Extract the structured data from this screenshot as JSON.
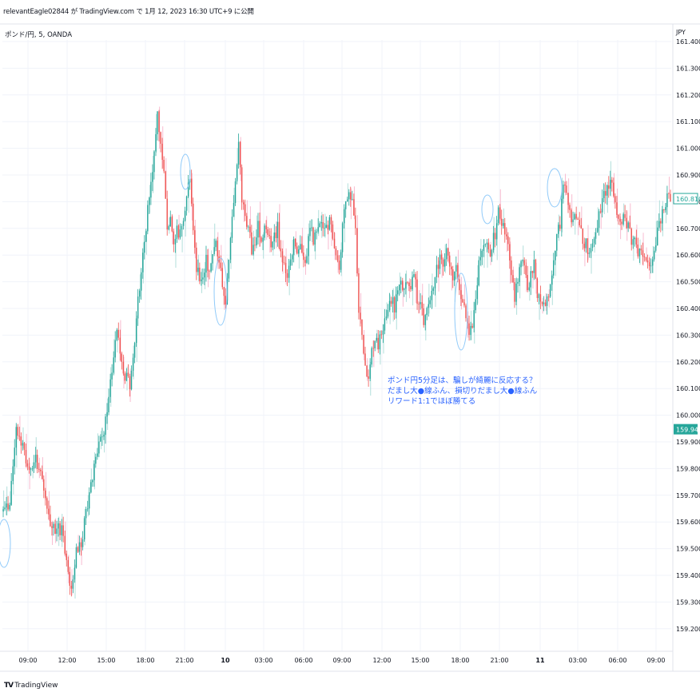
{
  "header": {
    "publisher": "relevantEagle02844 が TradingView.com で 1月 12, 2023 16:30 UTC+9 に公開"
  },
  "symbol_label": "ポンド/円, 5, OANDA",
  "brand": {
    "logo": "TV",
    "name": "TradingView"
  },
  "colors": {
    "up": "#26a69a",
    "down": "#ef5350",
    "ghost_up": "#b2dfdb",
    "ghost_down": "#f8bbd0",
    "annotation": "#2962ff",
    "ellipse": "#90caf9",
    "grid": "#f0f3fa"
  },
  "chart_data": {
    "type": "candlestick",
    "currency": "JPY",
    "ylim": [
      159.2,
      161.4
    ],
    "y_ticks": [
      "161.400",
      "161.300",
      "161.200",
      "161.100",
      "161.000",
      "160.900",
      "160.800",
      "160.700",
      "160.600",
      "160.500",
      "160.400",
      "160.300",
      "160.200",
      "160.100",
      "160.000",
      "159.900",
      "159.800",
      "159.700",
      "159.600",
      "159.500",
      "159.400",
      "159.300",
      "159.200"
    ],
    "x_ticks": [
      {
        "label": "09:00",
        "bold": false
      },
      {
        "label": "12:00",
        "bold": false
      },
      {
        "label": "15:00",
        "bold": false
      },
      {
        "label": "18:00",
        "bold": false
      },
      {
        "label": "21:00",
        "bold": false
      },
      {
        "label": "10",
        "bold": true
      },
      {
        "label": "03:00",
        "bold": false
      },
      {
        "label": "06:00",
        "bold": false
      },
      {
        "label": "09:00",
        "bold": false
      },
      {
        "label": "12:00",
        "bold": false
      },
      {
        "label": "15:00",
        "bold": false
      },
      {
        "label": "18:00",
        "bold": false
      },
      {
        "label": "21:00",
        "bold": false
      },
      {
        "label": "11",
        "bold": true
      },
      {
        "label": "03:00",
        "bold": false
      },
      {
        "label": "06:00",
        "bold": false
      },
      {
        "label": "09:00",
        "bold": false
      }
    ],
    "price_labels": [
      {
        "value": 160.81,
        "text": "160.810",
        "style": "outline"
      },
      {
        "value": 159.946,
        "text": "159.946",
        "style": "filled"
      }
    ],
    "anchors": [
      [
        0,
        159.64
      ],
      [
        4,
        159.66
      ],
      [
        8,
        159.96
      ],
      [
        12,
        159.88
      ],
      [
        16,
        159.8
      ],
      [
        20,
        159.85
      ],
      [
        24,
        159.74
      ],
      [
        28,
        159.62
      ],
      [
        32,
        159.56
      ],
      [
        36,
        159.58
      ],
      [
        40,
        159.42
      ],
      [
        42,
        159.34
      ],
      [
        45,
        159.5
      ],
      [
        48,
        159.52
      ],
      [
        52,
        159.66
      ],
      [
        56,
        159.82
      ],
      [
        60,
        159.9
      ],
      [
        64,
        160.0
      ],
      [
        68,
        160.24
      ],
      [
        70,
        160.3
      ],
      [
        72,
        160.24
      ],
      [
        74,
        160.14
      ],
      [
        76,
        160.16
      ],
      [
        78,
        160.12
      ],
      [
        80,
        160.2
      ],
      [
        82,
        160.36
      ],
      [
        84,
        160.48
      ],
      [
        86,
        160.6
      ],
      [
        88,
        160.7
      ],
      [
        90,
        160.84
      ],
      [
        92,
        160.9
      ],
      [
        95,
        161.14
      ],
      [
        97,
        161.02
      ],
      [
        99,
        160.9
      ],
      [
        101,
        160.7
      ],
      [
        103,
        160.74
      ],
      [
        105,
        160.66
      ],
      [
        107,
        160.7
      ],
      [
        109,
        160.68
      ],
      [
        111,
        160.74
      ],
      [
        113,
        160.8
      ],
      [
        115,
        160.9
      ],
      [
        117,
        160.7
      ],
      [
        119,
        160.56
      ],
      [
        121,
        160.52
      ],
      [
        123,
        160.5
      ],
      [
        125,
        160.58
      ],
      [
        127,
        160.54
      ],
      [
        129,
        160.62
      ],
      [
        131,
        160.66
      ],
      [
        133,
        160.56
      ],
      [
        135,
        160.5
      ],
      [
        137,
        160.4
      ],
      [
        139,
        160.6
      ],
      [
        141,
        160.74
      ],
      [
        143,
        160.9
      ],
      [
        145,
        161.02
      ],
      [
        147,
        160.8
      ],
      [
        149,
        160.74
      ],
      [
        151,
        160.72
      ],
      [
        153,
        160.62
      ],
      [
        155,
        160.64
      ],
      [
        157,
        160.72
      ],
      [
        159,
        160.66
      ],
      [
        161,
        160.7
      ],
      [
        163,
        160.68
      ],
      [
        165,
        160.62
      ],
      [
        167,
        160.66
      ],
      [
        169,
        160.7
      ],
      [
        171,
        160.6
      ],
      [
        173,
        160.56
      ],
      [
        175,
        160.52
      ],
      [
        177,
        160.56
      ],
      [
        179,
        160.64
      ],
      [
        181,
        160.6
      ],
      [
        183,
        160.64
      ],
      [
        185,
        160.56
      ],
      [
        187,
        160.6
      ],
      [
        189,
        160.7
      ],
      [
        191,
        160.66
      ],
      [
        193,
        160.68
      ],
      [
        195,
        160.72
      ],
      [
        197,
        160.68
      ],
      [
        199,
        160.7
      ],
      [
        201,
        160.74
      ],
      [
        203,
        160.66
      ],
      [
        205,
        160.6
      ],
      [
        207,
        160.54
      ],
      [
        209,
        160.7
      ],
      [
        211,
        160.8
      ],
      [
        213,
        160.86
      ],
      [
        215,
        160.8
      ],
      [
        217,
        160.7
      ],
      [
        219,
        160.4
      ],
      [
        221,
        160.3
      ],
      [
        223,
        160.2
      ],
      [
        225,
        160.14
      ],
      [
        227,
        160.24
      ],
      [
        229,
        160.3
      ],
      [
        231,
        160.24
      ],
      [
        233,
        160.32
      ],
      [
        235,
        160.36
      ],
      [
        237,
        160.4
      ],
      [
        239,
        160.44
      ],
      [
        241,
        160.4
      ],
      [
        243,
        160.46
      ],
      [
        245,
        160.5
      ],
      [
        247,
        160.46
      ],
      [
        249,
        160.52
      ],
      [
        251,
        160.48
      ],
      [
        253,
        160.54
      ],
      [
        255,
        160.44
      ],
      [
        257,
        160.4
      ],
      [
        259,
        160.36
      ],
      [
        261,
        160.38
      ],
      [
        263,
        160.44
      ],
      [
        265,
        160.48
      ],
      [
        267,
        160.54
      ],
      [
        269,
        160.6
      ],
      [
        271,
        160.58
      ],
      [
        273,
        160.62
      ],
      [
        275,
        160.56
      ],
      [
        277,
        160.52
      ],
      [
        279,
        160.56
      ],
      [
        281,
        160.46
      ],
      [
        283,
        160.42
      ],
      [
        285,
        160.36
      ],
      [
        287,
        160.3
      ],
      [
        289,
        160.34
      ],
      [
        291,
        160.46
      ],
      [
        293,
        160.56
      ],
      [
        295,
        160.62
      ],
      [
        297,
        160.66
      ],
      [
        299,
        160.6
      ],
      [
        301,
        160.64
      ],
      [
        303,
        160.68
      ],
      [
        305,
        160.78
      ],
      [
        307,
        160.72
      ],
      [
        309,
        160.68
      ],
      [
        311,
        160.66
      ],
      [
        313,
        160.52
      ],
      [
        315,
        160.44
      ],
      [
        317,
        160.5
      ],
      [
        319,
        160.58
      ],
      [
        321,
        160.54
      ],
      [
        323,
        160.48
      ],
      [
        325,
        160.52
      ],
      [
        327,
        160.56
      ],
      [
        329,
        160.46
      ],
      [
        331,
        160.42
      ],
      [
        333,
        160.4
      ],
      [
        335,
        160.44
      ],
      [
        337,
        160.48
      ],
      [
        339,
        160.56
      ],
      [
        341,
        160.66
      ],
      [
        343,
        160.72
      ],
      [
        345,
        160.88
      ],
      [
        347,
        160.82
      ],
      [
        349,
        160.76
      ],
      [
        351,
        160.72
      ],
      [
        353,
        160.76
      ],
      [
        355,
        160.7
      ],
      [
        357,
        160.66
      ],
      [
        359,
        160.64
      ],
      [
        361,
        160.6
      ],
      [
        363,
        160.66
      ],
      [
        365,
        160.7
      ],
      [
        367,
        160.74
      ],
      [
        369,
        160.8
      ],
      [
        371,
        160.84
      ],
      [
        373,
        160.86
      ],
      [
        375,
        160.88
      ],
      [
        377,
        160.8
      ],
      [
        379,
        160.74
      ],
      [
        381,
        160.72
      ],
      [
        383,
        160.74
      ],
      [
        385,
        160.7
      ],
      [
        387,
        160.66
      ],
      [
        389,
        160.64
      ],
      [
        391,
        160.62
      ],
      [
        393,
        160.6
      ],
      [
        395,
        160.58
      ],
      [
        397,
        160.56
      ],
      [
        399,
        160.54
      ],
      [
        401,
        160.6
      ],
      [
        403,
        160.7
      ],
      [
        405,
        160.74
      ],
      [
        407,
        160.78
      ],
      [
        409,
        160.82
      ],
      [
        411,
        160.81
      ]
    ],
    "annotations": {
      "text_lines": [
        "ポンド円5分足は、騙しが綺麗に反応する？",
        "だまし大●線ふん、損切りだまし大●線ふん",
        "リワード1:1でほぼ勝てる"
      ]
    }
  }
}
